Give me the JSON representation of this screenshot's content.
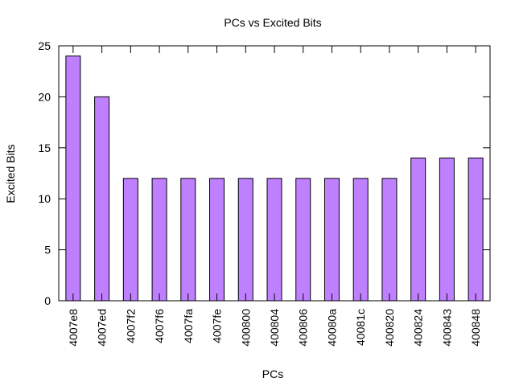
{
  "chart_data": {
    "type": "bar",
    "title": "PCs vs Excited Bits",
    "xlabel": "PCs",
    "ylabel": "Excited Bits",
    "categories": [
      "4007e8",
      "4007ed",
      "4007f2",
      "4007f6",
      "4007fa",
      "4007fe",
      "400800",
      "400804",
      "400806",
      "40080a",
      "40081c",
      "400820",
      "400824",
      "400843",
      "400848"
    ],
    "values": [
      24,
      20,
      12,
      12,
      12,
      12,
      12,
      12,
      12,
      12,
      12,
      12,
      14,
      14,
      14
    ],
    "ylim": [
      0,
      25
    ],
    "yticks": [
      0,
      5,
      10,
      15,
      20,
      25
    ],
    "bar_color": "#bf80ff",
    "grid": false,
    "legend": "none"
  }
}
